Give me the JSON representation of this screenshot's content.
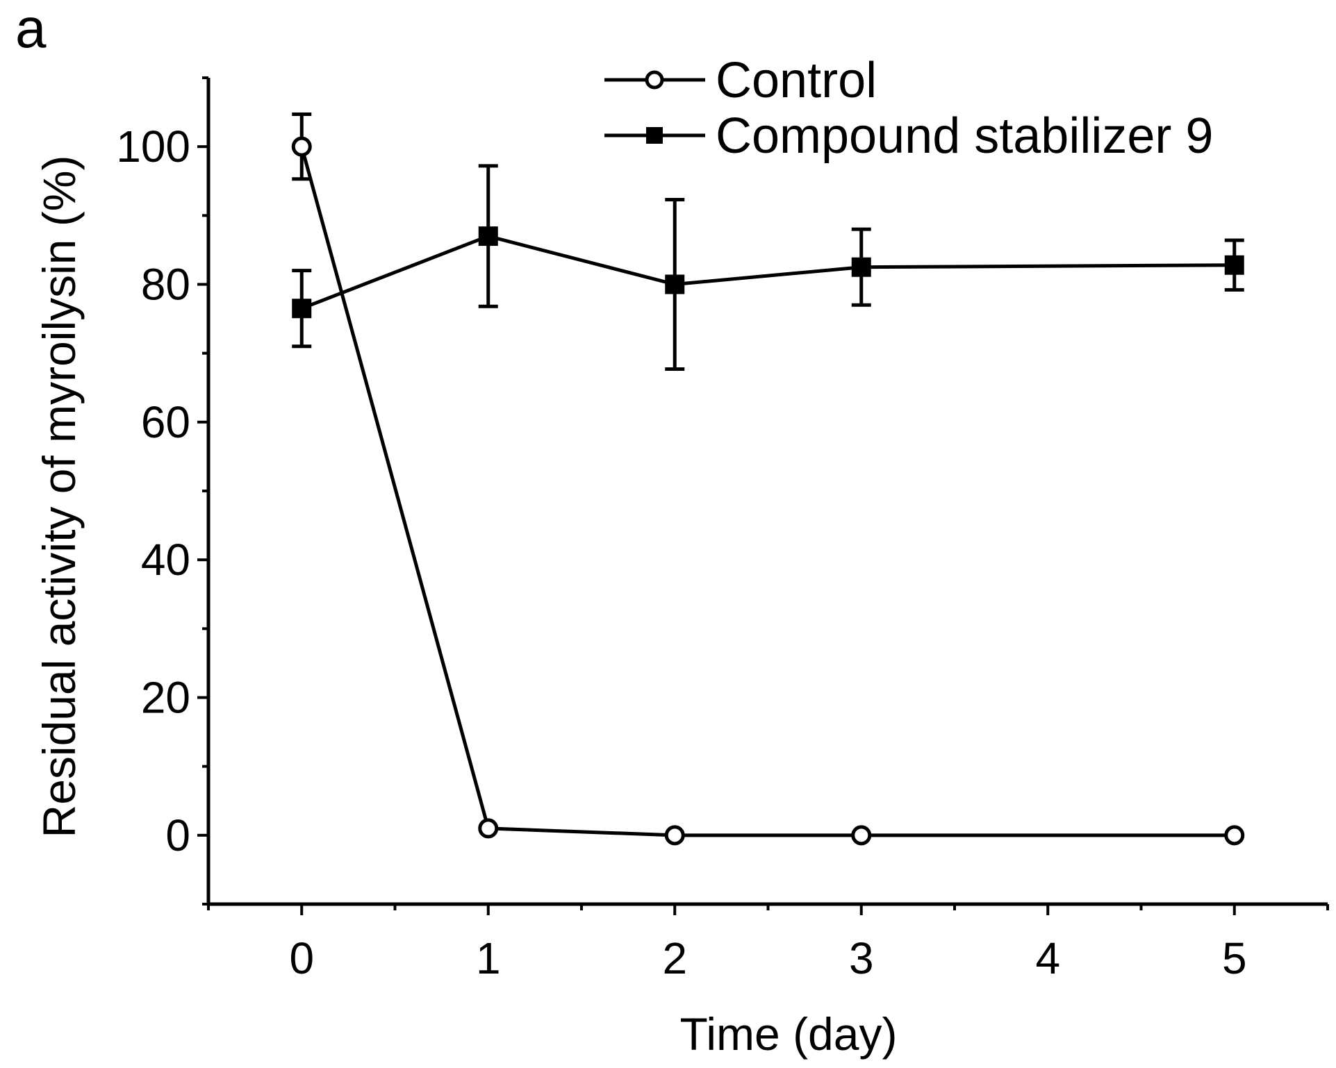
{
  "chart_data": {
    "type": "line",
    "panel_label": "a",
    "xlabel": "Time (day)",
    "ylabel": "Residual activity of myroilysin (%)",
    "xlim": [
      -0.5,
      5.5
    ],
    "ylim": [
      -10,
      110
    ],
    "x_ticks": [
      0,
      1,
      2,
      3,
      4,
      5
    ],
    "x_tick_labels": [
      "0",
      "1",
      "2",
      "3",
      "4",
      "5"
    ],
    "y_ticks": [
      0,
      20,
      40,
      60,
      80,
      100
    ],
    "y_tick_labels": [
      "0",
      "20",
      "40",
      "60",
      "80",
      "100"
    ],
    "grid": false,
    "legend_position": "top-right",
    "series": [
      {
        "name": "Control",
        "marker": "open-circle",
        "x": [
          0,
          1,
          2,
          3,
          5
        ],
        "y": [
          100,
          1,
          0,
          0,
          0
        ],
        "error": [
          4.7,
          0,
          0,
          0,
          0
        ]
      },
      {
        "name": "Compound stabilizer 9",
        "marker": "filled-square",
        "x": [
          0,
          1,
          2,
          3,
          5
        ],
        "y": [
          76.5,
          87,
          80,
          82.5,
          82.8
        ],
        "error": [
          5.5,
          10.2,
          12.3,
          5.5,
          3.6
        ]
      }
    ],
    "colors": {
      "line": "#000000",
      "background": "#ffffff"
    }
  }
}
